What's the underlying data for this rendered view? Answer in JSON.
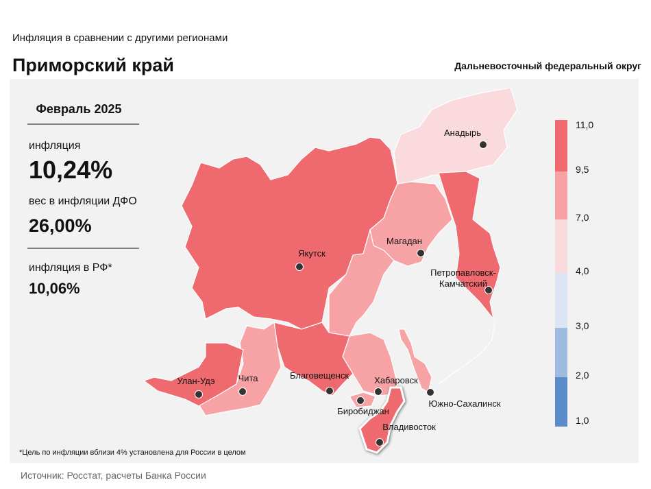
{
  "header": {
    "subtitle": "Инфляция  в сравнении  с другими  регионами",
    "title": "Приморский край",
    "district": "Дальневосточный федеральный округ"
  },
  "panel": {
    "period": "Февраль 2025",
    "inflation_label": "инфляция",
    "inflation_value": "10,24%",
    "weight_label": "вес в инфляции ДФО",
    "weight_value": "26,00%",
    "rf_label": "инфляция  в РФ*",
    "rf_value": "10,06%"
  },
  "map": {
    "cities": [
      {
        "label": [
          "Анадырь"
        ]
      },
      {
        "label": [
          "Магадан"
        ]
      },
      {
        "label": [
          "Якутск"
        ]
      },
      {
        "label": [
          "Петропавловск-",
          "Камчатский"
        ]
      },
      {
        "label": [
          "Улан-Удэ"
        ]
      },
      {
        "label": [
          "Чита"
        ]
      },
      {
        "label": [
          "Благовещенск"
        ]
      },
      {
        "label": [
          "Хабаровск"
        ]
      },
      {
        "label": [
          "Биробиджан"
        ]
      },
      {
        "label": [
          "Южно-Сахалинск"
        ]
      },
      {
        "label": [
          "Владивосток"
        ]
      }
    ]
  },
  "legend": {
    "ticks": [
      "11,0",
      "9,5",
      "7,0",
      "4,0",
      "3,0",
      "2,0",
      "1,0"
    ]
  },
  "footnote": "*Цель по инфляции вблизи 4% установлена для России в целом",
  "source": "Источник: Росстат, расчеты Банка России"
}
